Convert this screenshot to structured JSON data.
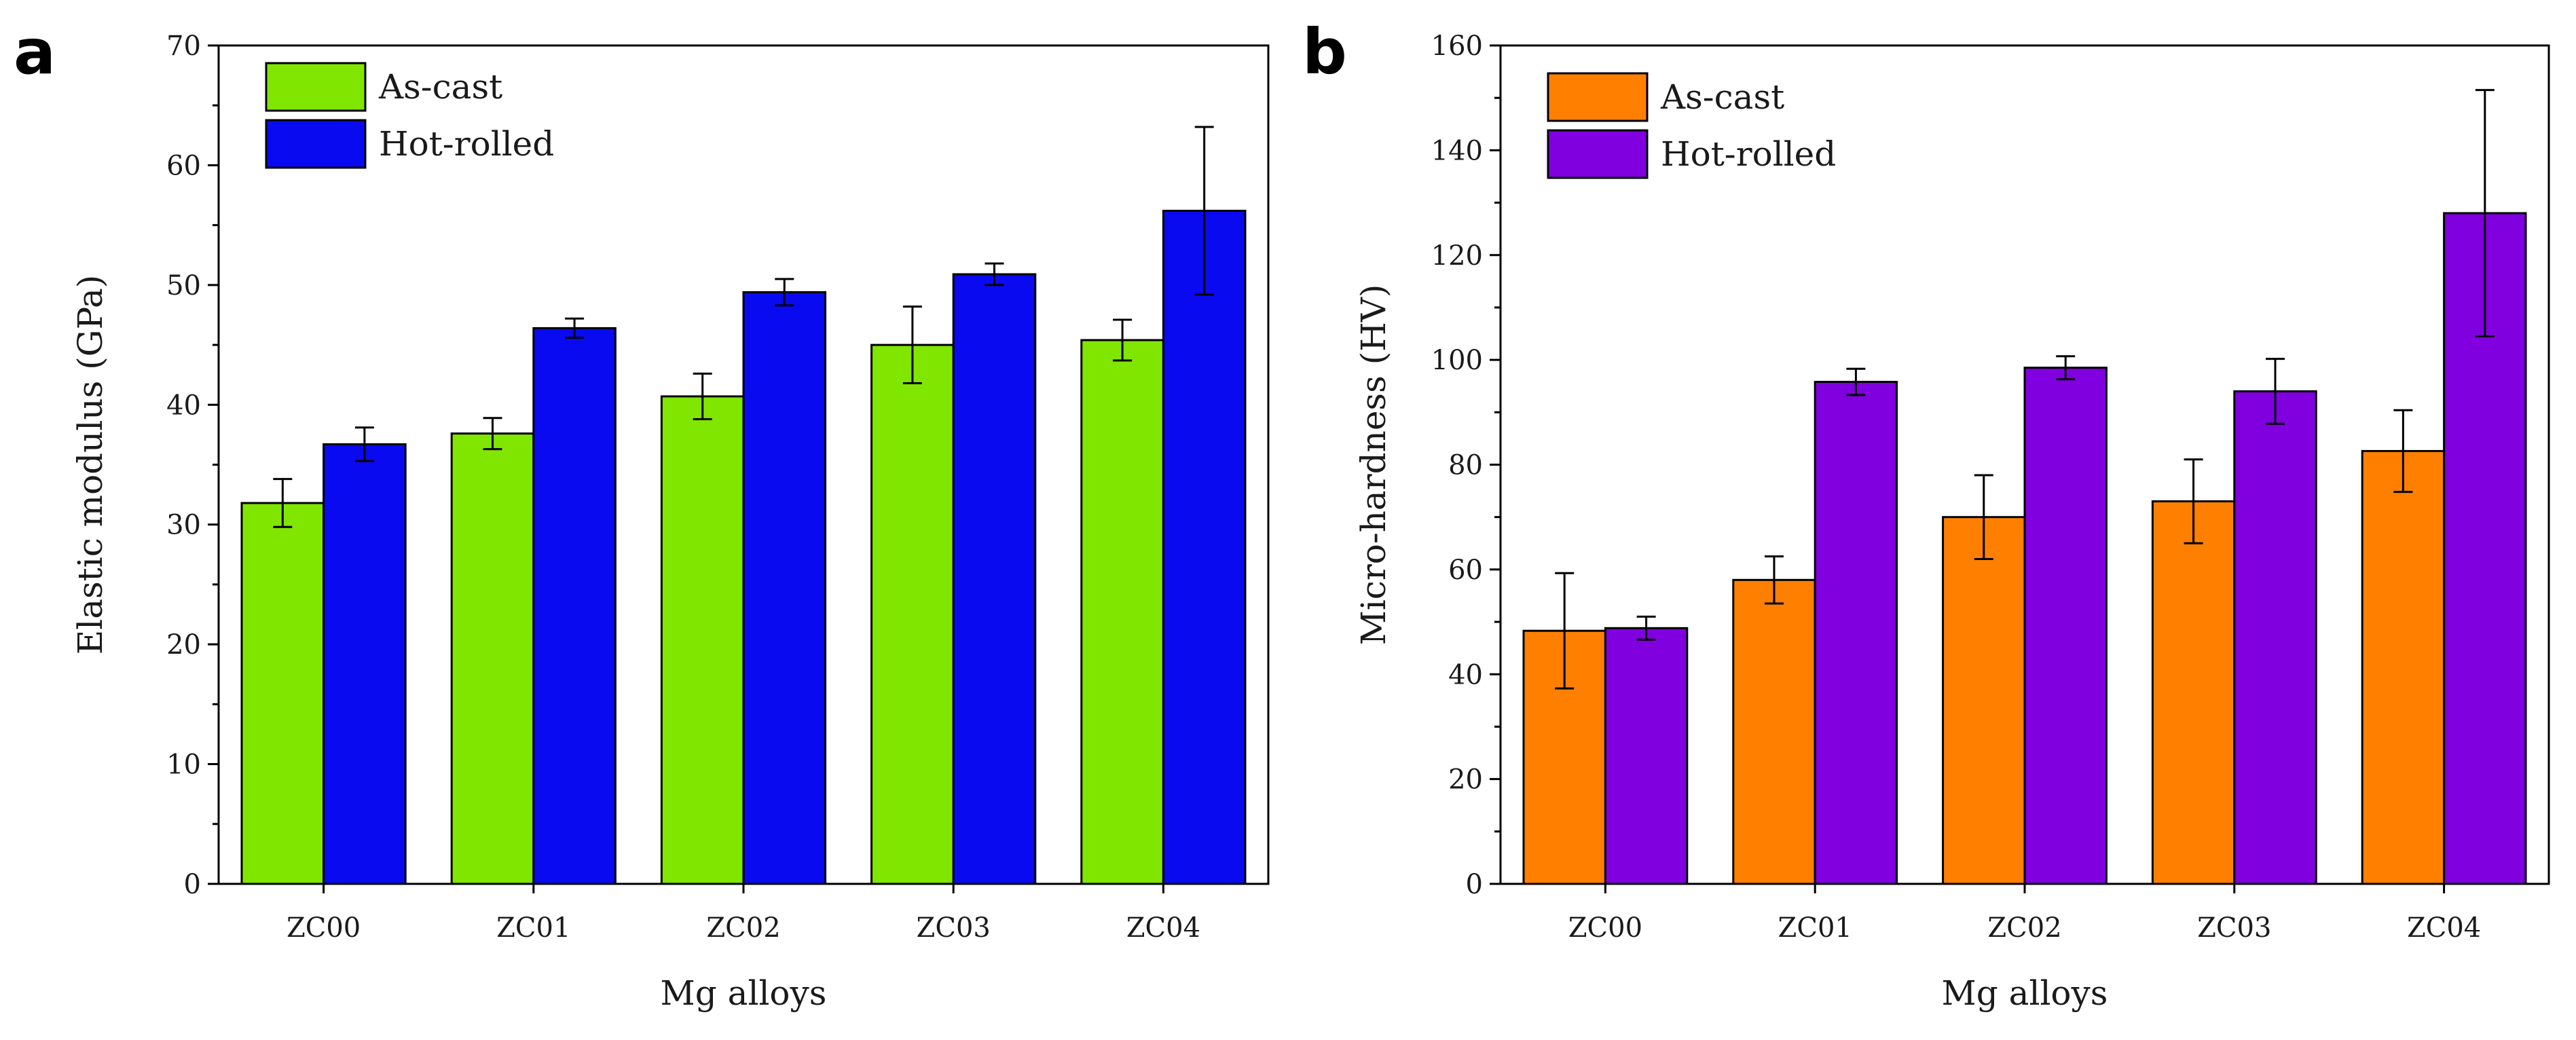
{
  "chart_data": [
    {
      "type": "bar",
      "panel": "a",
      "title": "",
      "xlabel": "Mg alloys",
      "ylabel": "Elastic modulus (GPa)",
      "ylim": [
        0,
        70
      ],
      "yticks": [
        0,
        10,
        20,
        30,
        40,
        50,
        60,
        70
      ],
      "categories": [
        "ZC00",
        "ZC01",
        "ZC02",
        "ZC03",
        "ZC04"
      ],
      "series": [
        {
          "name": "As-cast",
          "color": "#80e600",
          "values": [
            31.8,
            37.6,
            40.7,
            45.0,
            45.4
          ],
          "errors": [
            2.0,
            1.3,
            1.9,
            3.2,
            1.7
          ]
        },
        {
          "name": "Hot-rolled",
          "color": "#0a0af0",
          "values": [
            36.7,
            46.4,
            49.4,
            50.9,
            56.2
          ],
          "errors": [
            1.4,
            0.8,
            1.1,
            0.9,
            7.0
          ]
        }
      ],
      "legend_position": "top-left",
      "grid": false
    },
    {
      "type": "bar",
      "panel": "b",
      "title": "",
      "xlabel": "Mg alloys",
      "ylabel": "Micro-hardness (HV)",
      "ylim": [
        0,
        160
      ],
      "yticks": [
        0,
        20,
        40,
        60,
        80,
        100,
        120,
        140,
        160
      ],
      "categories": [
        "ZC00",
        "ZC01",
        "ZC02",
        "ZC03",
        "ZC04"
      ],
      "series": [
        {
          "name": "As-cast",
          "color": "#ff8000",
          "values": [
            48.3,
            58.0,
            70.0,
            73.0,
            82.6
          ],
          "errors": [
            11.0,
            4.5,
            8.0,
            8.0,
            7.8
          ]
        },
        {
          "name": "Hot-rolled",
          "color": "#8000e0",
          "values": [
            48.8,
            95.8,
            98.5,
            94.0,
            128.0
          ],
          "errors": [
            2.2,
            2.5,
            2.2,
            6.2,
            23.5
          ]
        }
      ],
      "legend_position": "top-left",
      "grid": false
    }
  ]
}
